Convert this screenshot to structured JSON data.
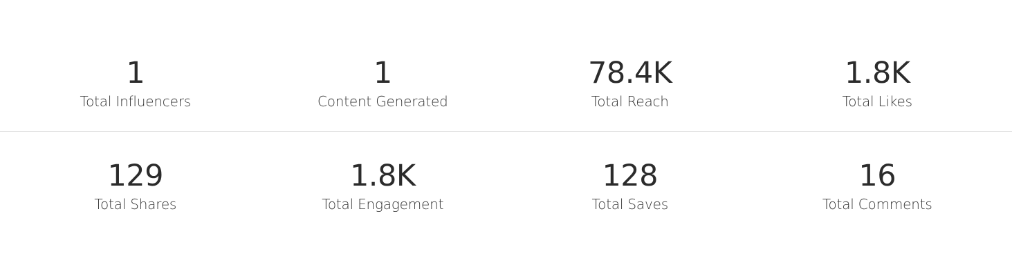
{
  "stats": {
    "rows": [
      [
        {
          "value": 1,
          "label": "Total Influencers"
        },
        {
          "value": 1,
          "label": "Content Generated"
        },
        {
          "value": "78.4K",
          "label": "Total Reach"
        },
        {
          "value": "1.8K",
          "label": "Total Likes"
        }
      ],
      [
        {
          "value": 129,
          "label": "Total Shares"
        },
        {
          "value": "1.8K",
          "label": "Total Engagement"
        },
        {
          "value": 128,
          "label": "Total Saves"
        },
        {
          "value": 16,
          "label": "Total Comments"
        }
      ]
    ]
  }
}
